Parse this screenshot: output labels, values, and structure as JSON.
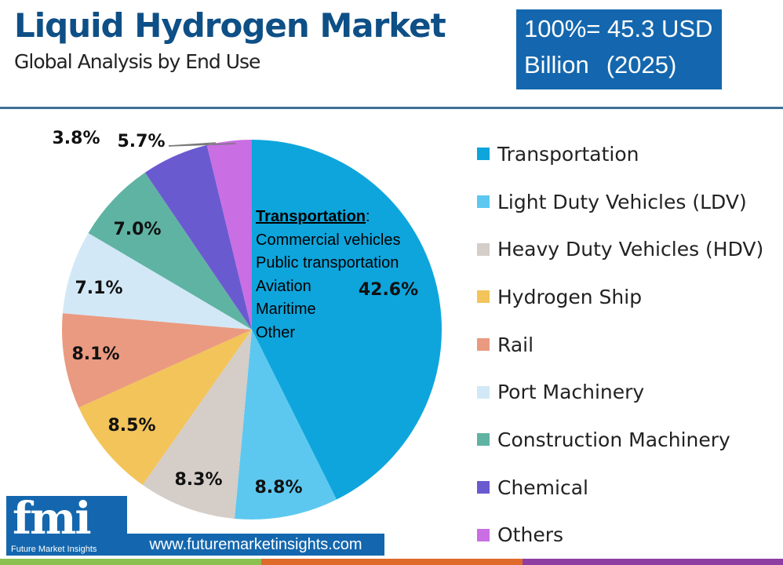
{
  "header": {
    "title": "Liquid Hydrogen Market",
    "subtitle": "Global Analysis by End Use"
  },
  "total_box": {
    "line1": "100%= 45.3 USD",
    "line2": "Billion",
    "year": "(2025)"
  },
  "chart_data": {
    "type": "pie",
    "title": "Liquid Hydrogen Market",
    "subtitle": "Global Analysis by End Use",
    "start": "top",
    "direction": "clockwise",
    "legend_placement": "right",
    "categories": [
      "Transportation",
      "Light Duty Vehicles (LDV)",
      "Heavy Duty Vehicles (HDV)",
      "Hydrogen Ship",
      "Rail",
      "Port Machinery",
      "Construction Machinery",
      "Chemical",
      "Others"
    ],
    "values": [
      42.6,
      8.8,
      8.3,
      8.5,
      8.1,
      7.1,
      7.0,
      5.7,
      3.8
    ],
    "labels": [
      "42.6%",
      "8.8%",
      "8.3%",
      "8.5%",
      "8.1%",
      "7.1%",
      "7.0%",
      "5.7%",
      "3.8%"
    ],
    "colors": [
      "#0ea5dc",
      "#5cc8f0",
      "#d5cdc8",
      "#f2c45a",
      "#ea9a80",
      "#d2e8f6",
      "#5fb3a3",
      "#6a5ad0",
      "#c96ee3"
    ],
    "annotation": {
      "heading": "Transportation",
      "heading_suffix": ":",
      "items": [
        "Commercial vehicles",
        "Public transportation",
        "Aviation",
        "Maritime",
        "Other"
      ]
    }
  },
  "branding": {
    "logo_text": "fmi",
    "logo_subtext": "Future Market Insights",
    "url": "www.futuremarketinsights.com"
  },
  "footer_colors": [
    "#8cc152",
    "#e06a2a",
    "#8e3ea0"
  ]
}
